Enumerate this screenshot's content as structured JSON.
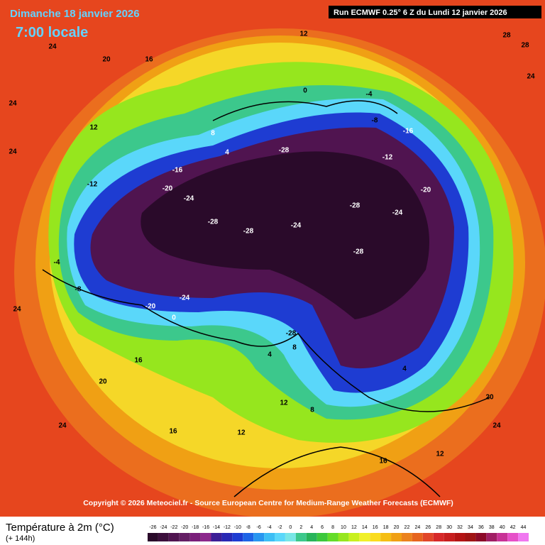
{
  "header": {
    "date": "Dimanche 18 janvier 2026",
    "time": "7:00 locale",
    "run": "Run ECMWF 0.25° 6 Z du Lundi 12 janvier 2026"
  },
  "copyright": "Copyright © 2026 Meteociel.fr - Source European Centre for Medium-Range Weather Forecasts (ECMWF)",
  "legend": {
    "title": "Température à 2m (°C)",
    "subtitle": "(+ 144h)",
    "ticks": [
      -26,
      -24,
      -22,
      -20,
      -18,
      -16,
      -14,
      -12,
      -10,
      -8,
      -6,
      -4,
      -2,
      0,
      2,
      4,
      6,
      8,
      10,
      12,
      14,
      16,
      18,
      20,
      22,
      24,
      26,
      28,
      30,
      32,
      34,
      36,
      38,
      40,
      42,
      44
    ],
    "colors": [
      "#2a0a2a",
      "#3c0f3c",
      "#501450",
      "#641e64",
      "#7a1e7a",
      "#8c288c",
      "#3c1e96",
      "#2828b4",
      "#1e3cd2",
      "#1e64e6",
      "#2896f0",
      "#3cbef5",
      "#5ad7fa",
      "#78e6e6",
      "#3cc88c",
      "#28b45a",
      "#3cc83c",
      "#64dc28",
      "#96e61e",
      "#c8f01e",
      "#f0f028",
      "#fadc1e",
      "#f5be14",
      "#f0a014",
      "#eb821e",
      "#e6641e",
      "#e14628",
      "#d72828",
      "#c81e1e",
      "#b41414",
      "#a01414",
      "#8c0a28",
      "#a01e64",
      "#c83296",
      "#e650c8",
      "#f078f0"
    ]
  },
  "map_labels": [
    "24",
    "20",
    "16",
    "12",
    "24",
    "24",
    "28",
    "28",
    "24",
    "12",
    "8",
    "4",
    "0",
    "-4",
    "-8",
    "-12",
    "-16",
    "-20",
    "-24",
    "-28",
    "-28",
    "-28",
    "-24",
    "-28",
    "-28",
    "-24",
    "-20",
    "-16",
    "-12",
    "-8",
    "-4",
    "0",
    "4",
    "8",
    "12",
    "16",
    "20",
    "24",
    "24",
    "16",
    "12",
    "8",
    "4",
    "20",
    "24",
    "16",
    "12",
    "-20",
    "-28",
    "-24"
  ]
}
